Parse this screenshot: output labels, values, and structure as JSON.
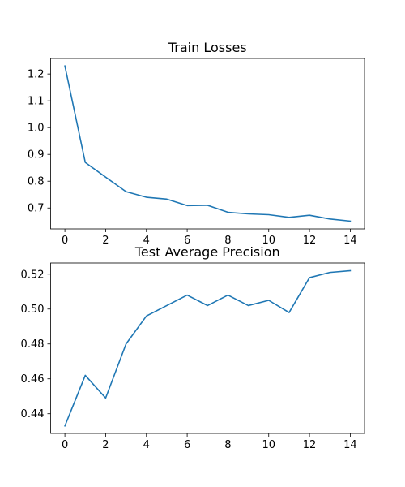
{
  "chart_data": [
    {
      "type": "line",
      "title": "Train Losses",
      "xlabel": "",
      "ylabel": "",
      "xlim": [
        -0.7,
        14.7
      ],
      "ylim": [
        0.622,
        1.258
      ],
      "xticks": [
        0,
        2,
        4,
        6,
        8,
        10,
        12,
        14
      ],
      "yticks": [
        0.7,
        0.8,
        0.9,
        1.0,
        1.1,
        1.2
      ],
      "ytick_labels": [
        "0.7",
        "0.8",
        "0.9",
        "1.0",
        "1.1",
        "1.2"
      ],
      "series": [
        {
          "color": "#1f77b4",
          "x": [
            0,
            1,
            2,
            3,
            4,
            5,
            6,
            7,
            8,
            9,
            10,
            11,
            12,
            13,
            14
          ],
          "values": [
            1.23,
            0.87,
            0.815,
            0.761,
            0.74,
            0.733,
            0.709,
            0.71,
            0.684,
            0.678,
            0.675,
            0.665,
            0.673,
            0.659,
            0.651
          ]
        }
      ],
      "grid": false
    },
    {
      "type": "line",
      "title": "Test Average Precision",
      "xlabel": "",
      "ylabel": "",
      "xlim": [
        -0.7,
        14.7
      ],
      "ylim": [
        0.4287,
        0.5264
      ],
      "xticks": [
        0,
        2,
        4,
        6,
        8,
        10,
        12,
        14
      ],
      "yticks": [
        0.44,
        0.46,
        0.48,
        0.5,
        0.52
      ],
      "ytick_labels": [
        "0.44",
        "0.46",
        "0.48",
        "0.50",
        "0.52"
      ],
      "series": [
        {
          "color": "#1f77b4",
          "x": [
            0,
            1,
            2,
            3,
            4,
            5,
            6,
            7,
            8,
            9,
            10,
            11,
            12,
            13,
            14
          ],
          "values": [
            0.433,
            0.462,
            0.449,
            0.48,
            0.496,
            0.502,
            0.508,
            0.502,
            0.508,
            0.502,
            0.505,
            0.498,
            0.518,
            0.521,
            0.522
          ]
        }
      ],
      "grid": false
    }
  ]
}
